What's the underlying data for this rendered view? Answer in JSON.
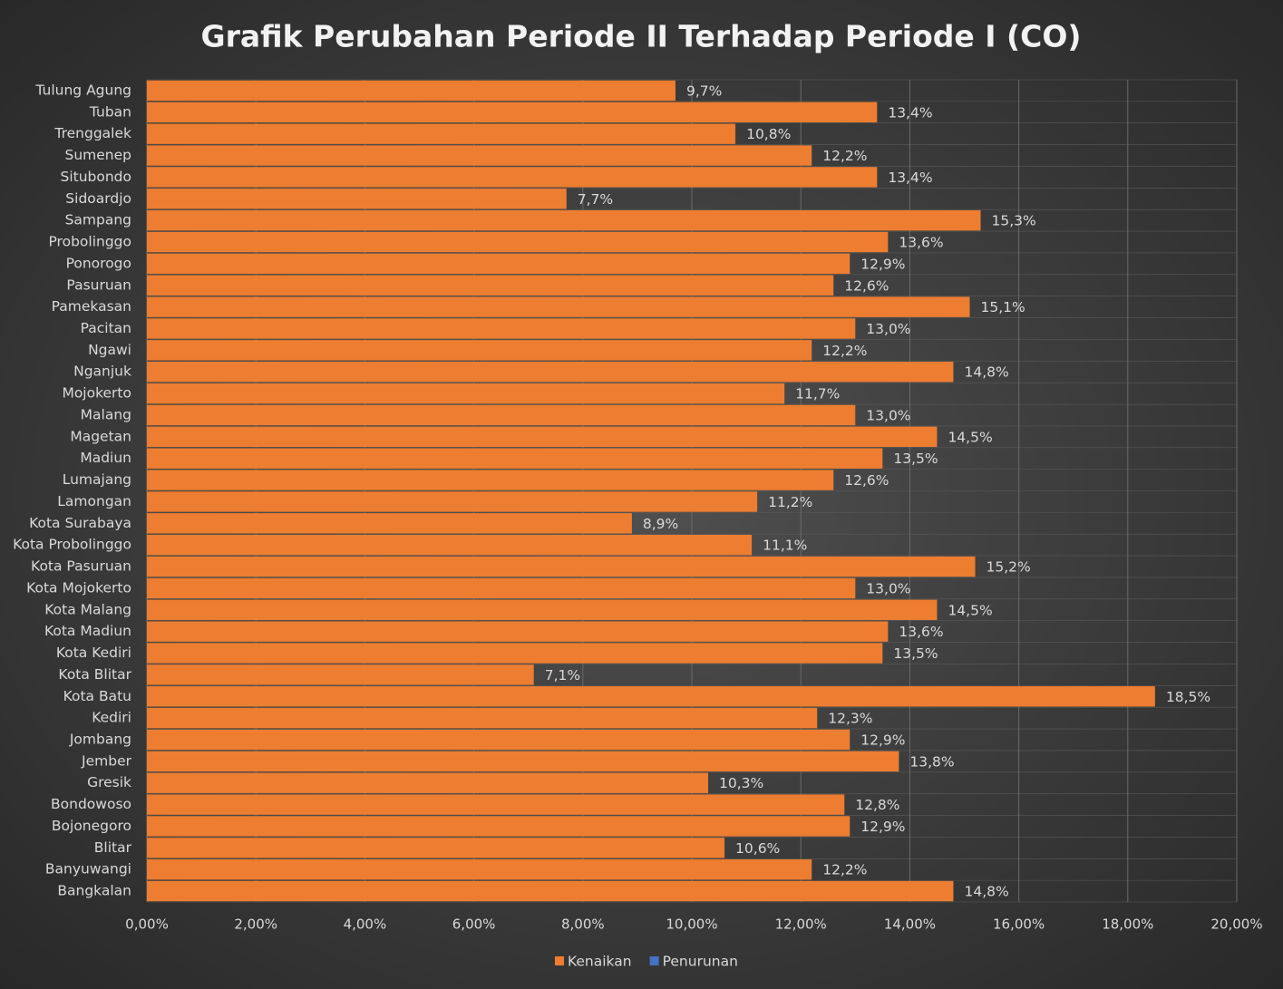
{
  "chart_data": {
    "type": "barh",
    "title": "Grafik Perubahan Periode II Terhadap Periode I (CO)",
    "categories": [
      "Tulung Agung",
      "Tuban",
      "Trenggalek",
      "Sumenep",
      "Situbondo",
      "Sidoardjo",
      "Sampang",
      "Probolinggo",
      "Ponorogo",
      "Pasuruan",
      "Pamekasan",
      "Pacitan",
      "Ngawi",
      "Nganjuk",
      "Mojokerto",
      "Malang",
      "Magetan",
      "Madiun",
      "Lumajang",
      "Lamongan",
      "Kota Surabaya",
      "Kota Probolinggo",
      "Kota Pasuruan",
      "Kota Mojokerto",
      "Kota Malang",
      "Kota Madiun",
      "Kota Kediri",
      "Kota Blitar",
      "Kota Batu",
      "Kediri",
      "Jombang",
      "Jember",
      "Gresik",
      "Bondowoso",
      "Bojonegoro",
      "Blitar",
      "Banyuwangi",
      "Bangkalan"
    ],
    "series": [
      {
        "name": "Kenaikan",
        "color": "#ed7d31",
        "values": [
          9.7,
          13.4,
          10.8,
          12.2,
          13.4,
          7.7,
          15.3,
          13.6,
          12.9,
          12.6,
          15.1,
          13.0,
          12.2,
          14.8,
          11.7,
          13.0,
          14.5,
          13.5,
          12.6,
          11.2,
          8.9,
          11.1,
          15.2,
          13.0,
          14.5,
          13.6,
          13.5,
          7.1,
          18.5,
          12.3,
          12.9,
          13.8,
          10.3,
          12.8,
          12.9,
          10.6,
          12.2,
          14.8
        ],
        "value_labels": [
          "9,7%",
          "13,4%",
          "10,8%",
          "12,2%",
          "13,4%",
          "7,7%",
          "15,3%",
          "13,6%",
          "12,9%",
          "12,6%",
          "15,1%",
          "13,0%",
          "12,2%",
          "14,8%",
          "11,7%",
          "13,0%",
          "14,5%",
          "13,5%",
          "12,6%",
          "11,2%",
          "8,9%",
          "11,1%",
          "15,2%",
          "13,0%",
          "14,5%",
          "13,6%",
          "13,5%",
          "7,1%",
          "18,5%",
          "12,3%",
          "12,9%",
          "13,8%",
          "10,3%",
          "12,8%",
          "12,9%",
          "10,6%",
          "12,2%",
          "14,8%"
        ]
      },
      {
        "name": "Penurunan",
        "color": "#4472c4",
        "values": [
          null,
          null,
          null,
          null,
          null,
          null,
          null,
          null,
          null,
          null,
          null,
          null,
          null,
          null,
          null,
          null,
          null,
          null,
          null,
          null,
          null,
          null,
          null,
          null,
          null,
          null,
          null,
          null,
          null,
          null,
          null,
          null,
          null,
          null,
          null,
          null,
          null,
          null
        ]
      }
    ],
    "xlim": [
      0,
      20
    ],
    "xticks": [
      {
        "value": 0,
        "label": "0,00%"
      },
      {
        "value": 2,
        "label": "2,00%"
      },
      {
        "value": 4,
        "label": "4,00%"
      },
      {
        "value": 6,
        "label": "6,00%"
      },
      {
        "value": 8,
        "label": "8,00%"
      },
      {
        "value": 10,
        "label": "10,00%"
      },
      {
        "value": 12,
        "label": "12,00%"
      },
      {
        "value": 14,
        "label": "14,00%"
      },
      {
        "value": 16,
        "label": "16,00%"
      },
      {
        "value": 18,
        "label": "18,00%"
      },
      {
        "value": 20,
        "label": "20,00%"
      }
    ],
    "grid": true,
    "legend": "bottom"
  }
}
